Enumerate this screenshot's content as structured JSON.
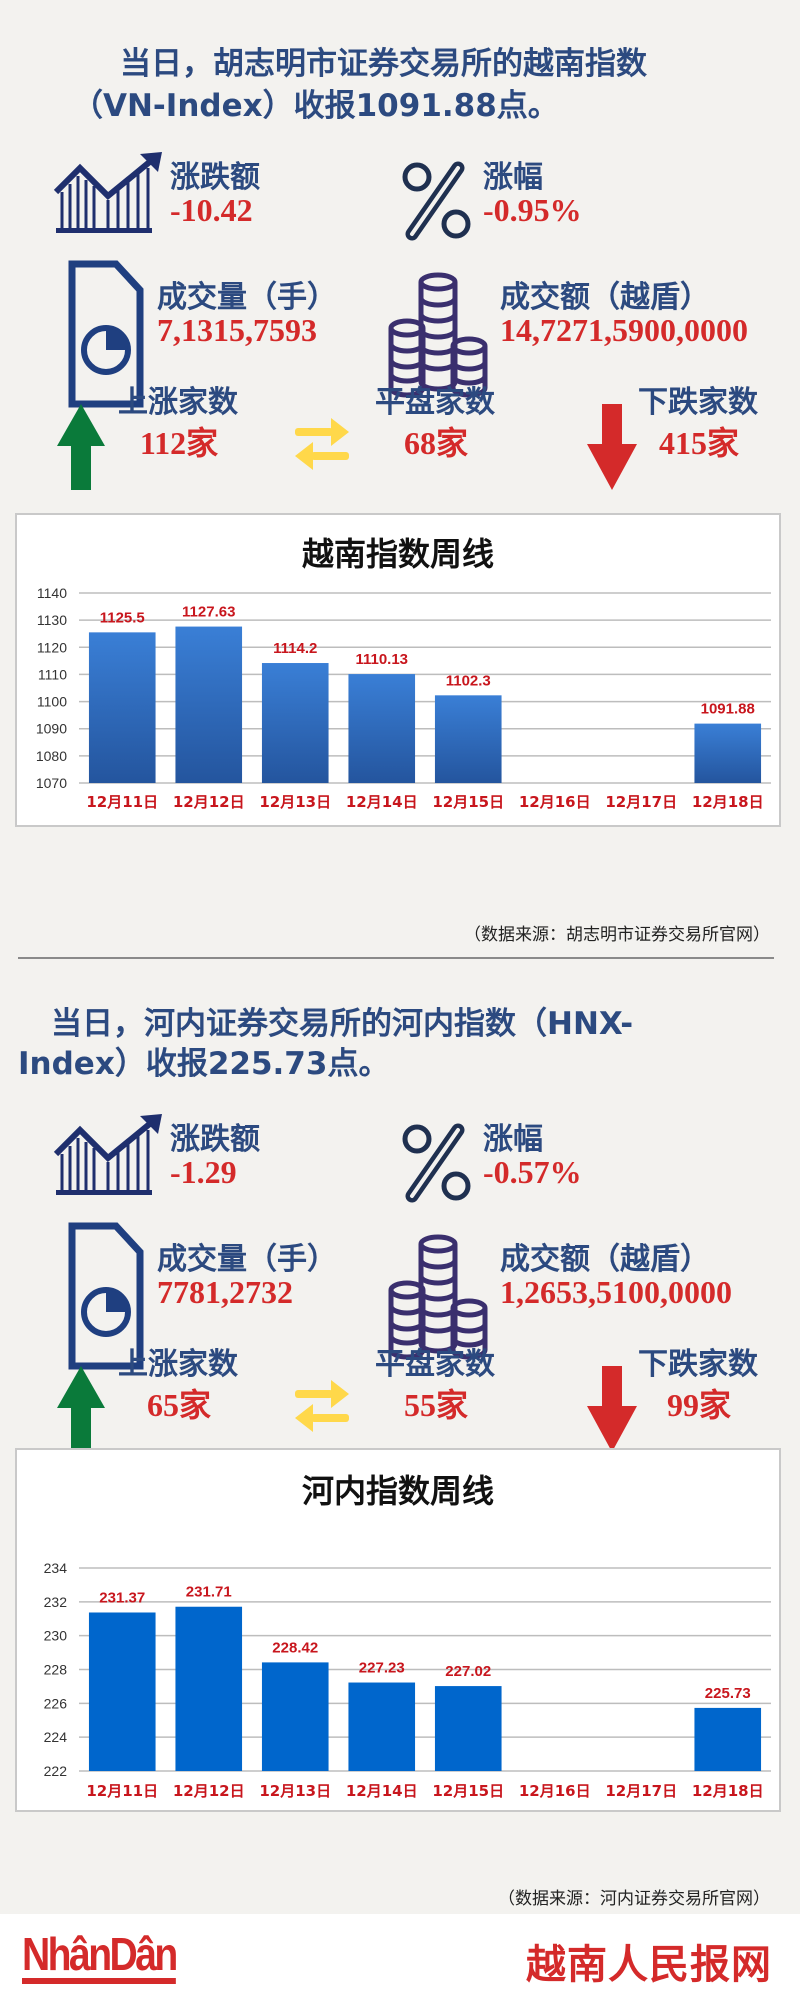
{
  "colors": {
    "navy": "#2c4a80",
    "red": "#d42a2a",
    "up": "#0a7a3a",
    "flat": "#ffd84a",
    "down": "#d42a2a",
    "bar1": "#2f6fc8",
    "bar2": "#0066cc"
  },
  "sections": [
    {
      "headline_1": "当日，胡志明市证券交易所的越南指数",
      "headline_2": "（VN-Index）收报1091.88点。",
      "change_label": "涨跌额",
      "change_value": "-10.42",
      "pct_label": "涨幅",
      "pct_value": "-0.95%",
      "volume_label": "成交量（手）",
      "volume_value": "7,1315,7593",
      "turnover_label": "成交额（越盾）",
      "turnover_value": "14,7271,5900,0000",
      "up_label": "上涨家数",
      "up_value": "112家",
      "flat_label": "平盘家数",
      "flat_value": "68家",
      "down_label": "下跌家数",
      "down_value": "415家",
      "source": "（数据来源：胡志明市证券交易所官网）"
    },
    {
      "headline_1": "当日，河内证券交易所的河内指数（HNX-",
      "headline_2": "Index）收报225.73点。",
      "change_label": "涨跌额",
      "change_value": "-1.29",
      "pct_label": "涨幅",
      "pct_value": "-0.57%",
      "volume_label": "成交量（手）",
      "volume_value": "7781,2732",
      "turnover_label": "成交额（越盾）",
      "turnover_value": "1,2653,5100,0000",
      "up_label": "上涨家数",
      "up_value": "65家",
      "flat_label": "平盘家数",
      "flat_value": "55家",
      "down_label": "下跌家数",
      "down_value": "99家",
      "source": "（数据来源：河内证券交易所官网）"
    }
  ],
  "chart_data": [
    {
      "type": "bar",
      "title": "越南指数周线",
      "categories": [
        "12月11日",
        "12月12日",
        "12月13日",
        "12月14日",
        "12月15日",
        "12月16日",
        "12月17日",
        "12月18日"
      ],
      "values": [
        1125.5,
        1127.63,
        1114.2,
        1110.13,
        1102.3,
        null,
        null,
        1091.88
      ],
      "data_labels": [
        "1125.5",
        "1127.63",
        "1114.2",
        "1110.13",
        "1102.3",
        "",
        "",
        "1091.88"
      ],
      "ylim": [
        1070,
        1140
      ],
      "yticks": [
        1070,
        1080,
        1090,
        1100,
        1110,
        1120,
        1130,
        1140
      ],
      "grid": true
    },
    {
      "type": "bar",
      "title": "河内指数周线",
      "categories": [
        "12月11日",
        "12月12日",
        "12月13日",
        "12月14日",
        "12月15日",
        "12月16日",
        "12月17日",
        "12月18日"
      ],
      "values": [
        231.37,
        231.71,
        228.42,
        227.23,
        227.02,
        null,
        null,
        225.73
      ],
      "data_labels": [
        "231.37",
        "231.71",
        "228.42",
        "227.23",
        "227.02",
        "",
        "",
        "225.73"
      ],
      "ylim": [
        222,
        234
      ],
      "yticks": [
        222,
        224,
        226,
        228,
        230,
        232,
        234
      ],
      "grid": true
    }
  ],
  "footer": {
    "brand": "NhânDân",
    "brand_cn": "越南人民报网"
  }
}
